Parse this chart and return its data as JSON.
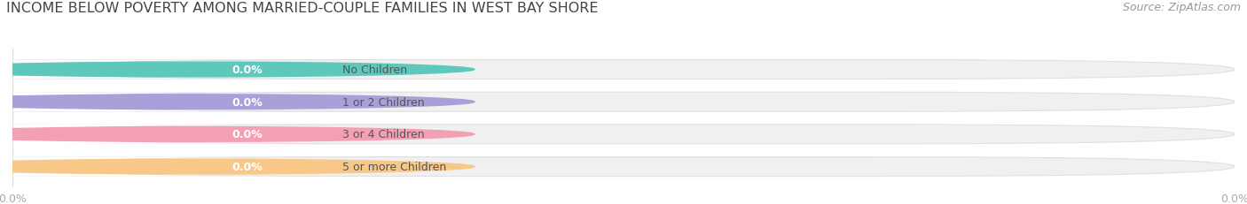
{
  "title": "INCOME BELOW POVERTY AMONG MARRIED-COUPLE FAMILIES IN WEST BAY SHORE",
  "source": "Source: ZipAtlas.com",
  "categories": [
    "No Children",
    "1 or 2 Children",
    "3 or 4 Children",
    "5 or more Children"
  ],
  "values": [
    0.0,
    0.0,
    0.0,
    0.0
  ],
  "bar_colors": [
    "#5ec8bc",
    "#a8a0d8",
    "#f4a0b4",
    "#f8c888"
  ],
  "bar_bg_color": "#f0f0f0",
  "bar_border_color": "#e0e0e0",
  "bg_color": "#ffffff",
  "title_fontsize": 11.5,
  "source_fontsize": 9,
  "label_fontsize": 9,
  "value_fontsize": 9,
  "grid_color": "#d8d8d8",
  "tick_color": "#aaaaaa",
  "title_color": "#444444",
  "label_text_color": "#555555",
  "value_text_color": "#ffffff",
  "xtick_labels": [
    "0.0%",
    "0.0%"
  ]
}
